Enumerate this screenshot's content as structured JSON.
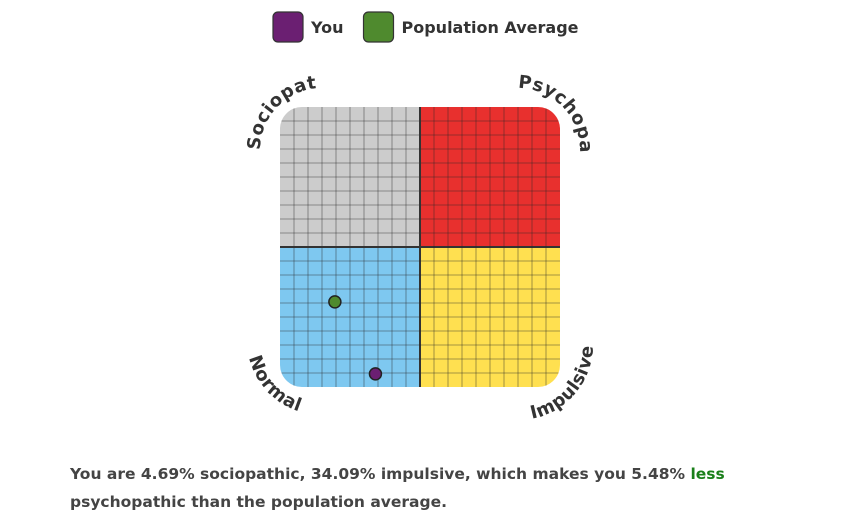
{
  "chart_data": {
    "type": "scatter",
    "series": [
      {
        "name": "You",
        "color": "#6b1f72",
        "x": [
          34.09
        ],
        "values": [
          4.69
        ]
      },
      {
        "name": "Population Average",
        "color": "#4f8a2e",
        "x": [
          19.6
        ],
        "values": [
          30.4
        ]
      }
    ],
    "xlim": [
      0,
      100
    ],
    "ylim": [
      0,
      100
    ],
    "quadrant_labels": [
      "Sociopath",
      "Psychopath",
      "Normal",
      "Impulsive"
    ],
    "quadrant_colors": [
      "#cccccc",
      "#e8302e",
      "#7ec8f0",
      "#ffe050"
    ],
    "summary": {
      "text": "You are 4.69% sociopathic, 34.09% impulsive, which makes you 5.48% ",
      "highlight": "less",
      "highlight_color": "#1a7f1a",
      "end": " psychopathic than the population average."
    }
  }
}
